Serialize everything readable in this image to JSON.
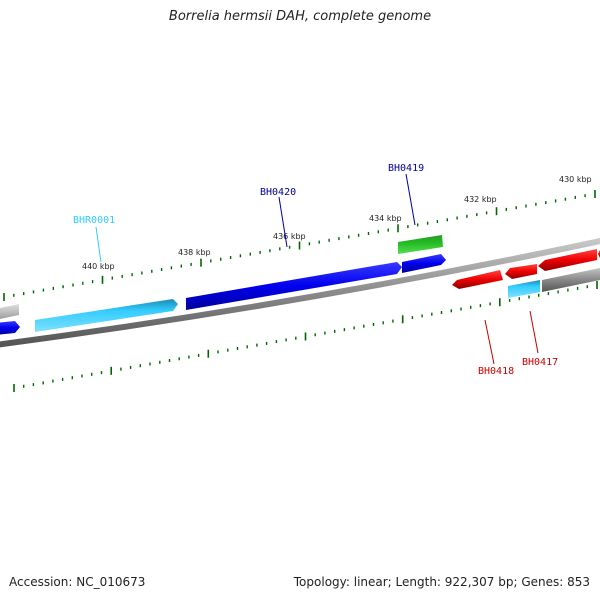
{
  "title": "Borrelia hermsii DAH, complete genome",
  "footer": {
    "accession": "Accession: NC_010673",
    "stats": "Topology: linear; Length: 922,307 bp; Genes: 853"
  },
  "colors": {
    "cds": "#0000ee",
    "rna": "#33ccff",
    "reverse_cds": "#ee0000",
    "other": "#666666",
    "green": "#22bb22",
    "backbone": "#808080",
    "tick": "#006600"
  },
  "scale": {
    "upper_tick_labels": [
      "440 kbp",
      "438 kbp",
      "436 kbp",
      "434 kbp",
      "432 kbp",
      "430 kbp"
    ],
    "lower_ticks_labeled": false
  },
  "genes": [
    {
      "name": "BHR0001",
      "label_color": "#33ccff"
    },
    {
      "name": "BH0420",
      "label_color": "#000099"
    },
    {
      "name": "BH0419",
      "label_color": "#000099"
    },
    {
      "name": "BH0418",
      "label_color": "#cc0000"
    },
    {
      "name": "BH0417",
      "label_color": "#cc0000"
    }
  ]
}
